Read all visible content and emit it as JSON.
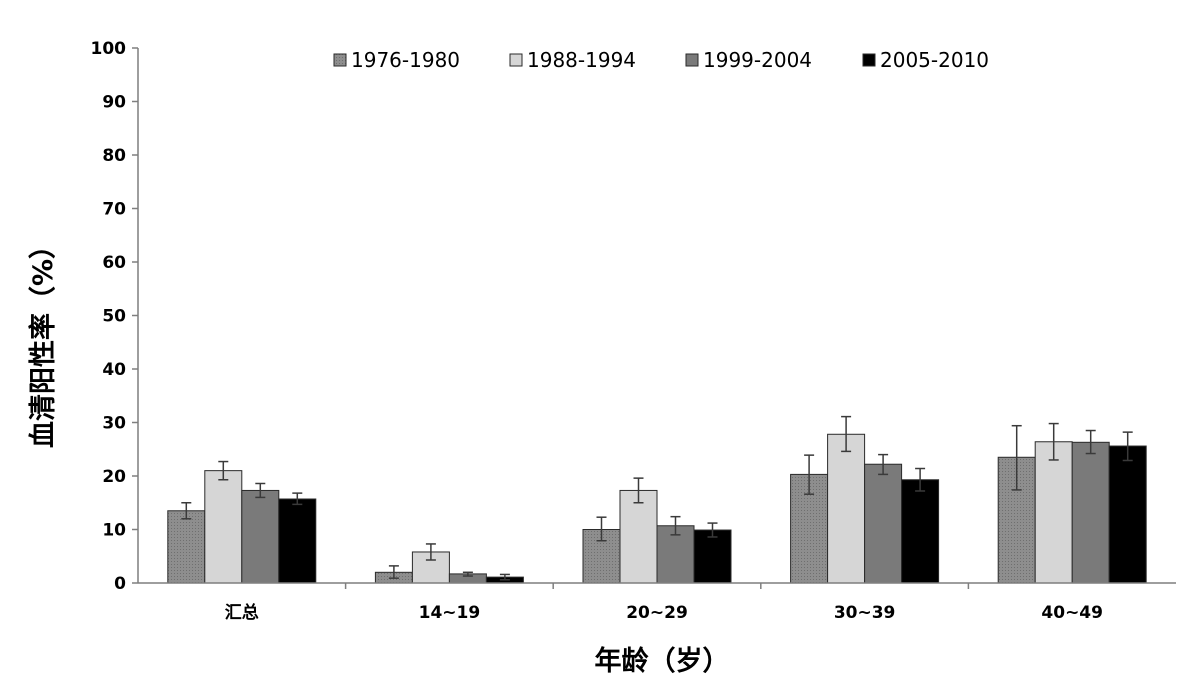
{
  "chart_data": {
    "type": "bar",
    "title": "",
    "xlabel": "年龄（岁）",
    "ylabel": "血清阳性率（%）",
    "ylim": [
      0,
      100
    ],
    "yticks": [
      "0",
      "10",
      "20",
      "30",
      "40",
      "50",
      "60",
      "70",
      "80",
      "90",
      "100"
    ],
    "grid": false,
    "legend_position": "top",
    "categories": [
      "汇总",
      "14~19",
      "20~29",
      "30~39",
      "40~49"
    ],
    "series": [
      {
        "name": "1976-1980",
        "color": "#8a8a8a",
        "values": [
          13.5,
          2.0,
          10.0,
          20.3,
          23.5
        ],
        "err_low": [
          12.0,
          0.9,
          7.9,
          16.6,
          17.4
        ],
        "err_high": [
          15.0,
          3.2,
          12.3,
          23.9,
          29.4
        ]
      },
      {
        "name": "1988-1994",
        "color": "#d6d6d6",
        "values": [
          21.0,
          5.8,
          17.3,
          27.8,
          26.4
        ],
        "err_low": [
          19.3,
          4.3,
          15.0,
          24.6,
          23.0
        ],
        "err_high": [
          22.7,
          7.3,
          19.6,
          31.1,
          29.8
        ]
      },
      {
        "name": "1999-2004",
        "color": "#7a7a7a",
        "values": [
          17.3,
          1.7,
          10.7,
          22.2,
          26.3
        ],
        "err_low": [
          16.0,
          1.3,
          9.0,
          20.3,
          24.2
        ],
        "err_high": [
          18.6,
          2.0,
          12.4,
          24.0,
          28.5
        ]
      },
      {
        "name": "2005-2010",
        "color": "#000000",
        "values": [
          15.7,
          1.1,
          9.9,
          19.3,
          25.6
        ],
        "err_low": [
          14.7,
          0.6,
          8.6,
          17.2,
          22.9
        ],
        "err_high": [
          16.8,
          1.6,
          11.2,
          21.4,
          28.2
        ]
      }
    ]
  }
}
